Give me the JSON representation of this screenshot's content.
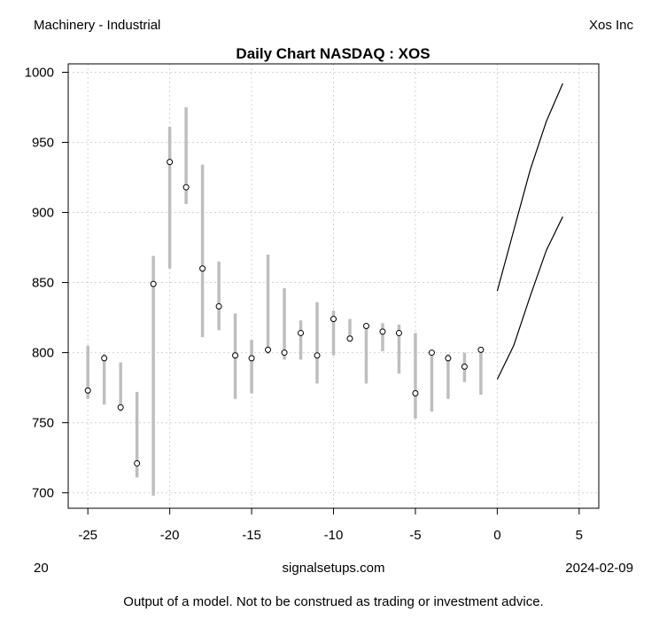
{
  "header": {
    "sector": "Machinery - Industrial",
    "company": "Xos Inc"
  },
  "footer": {
    "left_number": "20",
    "site": "signalsetups.com",
    "date": "2024-02-09",
    "disclaimer": "Output of a model.   Not to be construed as trading or investment advice."
  },
  "chart_data": {
    "type": "line",
    "title": "Daily Chart NASDAQ : XOS",
    "xlim": [
      -26.2,
      6.2
    ],
    "ylim": [
      689,
      1006
    ],
    "x_ticks": [
      -25,
      -20,
      -15,
      -10,
      -5,
      0,
      5
    ],
    "y_ticks": [
      700,
      750,
      800,
      850,
      900,
      950,
      1000
    ],
    "grid": true,
    "bars": [
      {
        "x": -25,
        "low": 767,
        "high": 805,
        "close": 773
      },
      {
        "x": -24,
        "low": 763,
        "high": 799,
        "close": 796
      },
      {
        "x": -23,
        "low": 758,
        "high": 793,
        "close": 761
      },
      {
        "x": -22,
        "low": 711,
        "high": 772,
        "close": 721
      },
      {
        "x": -21,
        "low": 698,
        "high": 869,
        "close": 849
      },
      {
        "x": -20,
        "low": 860,
        "high": 961,
        "close": 936
      },
      {
        "x": -19,
        "low": 906,
        "high": 975,
        "close": 918
      },
      {
        "x": -18,
        "low": 811,
        "high": 934,
        "close": 860
      },
      {
        "x": -17,
        "low": 816,
        "high": 865,
        "close": 833
      },
      {
        "x": -16,
        "low": 767,
        "high": 828,
        "close": 798
      },
      {
        "x": -15,
        "low": 771,
        "high": 809,
        "close": 796
      },
      {
        "x": -14,
        "low": 799,
        "high": 870,
        "close": 802
      },
      {
        "x": -13,
        "low": 795,
        "high": 846,
        "close": 800
      },
      {
        "x": -12,
        "low": 795,
        "high": 823,
        "close": 814
      },
      {
        "x": -11,
        "low": 778,
        "high": 836,
        "close": 798
      },
      {
        "x": -10,
        "low": 798,
        "high": 830,
        "close": 824
      },
      {
        "x": -9,
        "low": 808,
        "high": 824,
        "close": 810
      },
      {
        "x": -8,
        "low": 778,
        "high": 820,
        "close": 819
      },
      {
        "x": -7,
        "low": 801,
        "high": 821,
        "close": 815
      },
      {
        "x": -6,
        "low": 785,
        "high": 820,
        "close": 814
      },
      {
        "x": -5,
        "low": 753,
        "high": 814,
        "close": 771
      },
      {
        "x": -4,
        "low": 758,
        "high": 801,
        "close": 800
      },
      {
        "x": -3,
        "low": 767,
        "high": 799,
        "close": 796
      },
      {
        "x": -2,
        "low": 779,
        "high": 800,
        "close": 790
      },
      {
        "x": -1,
        "low": 770,
        "high": 804,
        "close": 802
      }
    ],
    "series": [
      {
        "x": [
          0,
          1,
          2,
          3,
          4
        ],
        "values": [
          844,
          887,
          930,
          965,
          992
        ]
      },
      {
        "x": [
          0,
          1,
          2,
          3,
          4
        ],
        "values": [
          781,
          805,
          840,
          873,
          897
        ]
      }
    ],
    "colors": {
      "range_bar": "#bebebe",
      "projection": "#000000",
      "grid": "#d3d3d3"
    }
  }
}
